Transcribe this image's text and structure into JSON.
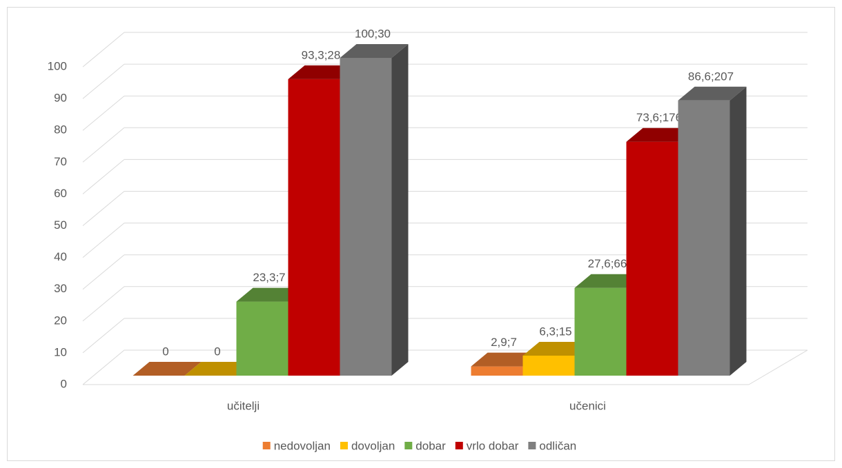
{
  "chart_data": {
    "type": "bar3d",
    "categories": [
      "učitelji",
      "učenici"
    ],
    "series": [
      {
        "name": "nedovoljan",
        "color": "#ed7d31",
        "values": [
          0,
          2.9
        ],
        "value_labels": [
          "0",
          "2,9;7"
        ]
      },
      {
        "name": "dovoljan",
        "color": "#ffc000",
        "values": [
          0,
          6.3
        ],
        "value_labels": [
          "0",
          "6,3;15"
        ]
      },
      {
        "name": "dobar",
        "color": "#70ad47",
        "values": [
          23.3,
          27.6
        ],
        "value_labels": [
          "23,3;7",
          "27,6;66"
        ]
      },
      {
        "name": "vrlo dobar",
        "color": "#c00000",
        "values": [
          93.3,
          73.6
        ],
        "value_labels": [
          "93,3;28",
          "73,6;176"
        ]
      },
      {
        "name": "odličan",
        "color": "#7f7f7f",
        "values": [
          100,
          86.6
        ],
        "value_labels": [
          "100;30",
          "86,6;207"
        ]
      }
    ],
    "ylim": [
      0,
      100
    ],
    "yticks": [
      0,
      10,
      20,
      30,
      40,
      50,
      60,
      70,
      80,
      90,
      100
    ],
    "grid": true,
    "legend": "bottom"
  }
}
